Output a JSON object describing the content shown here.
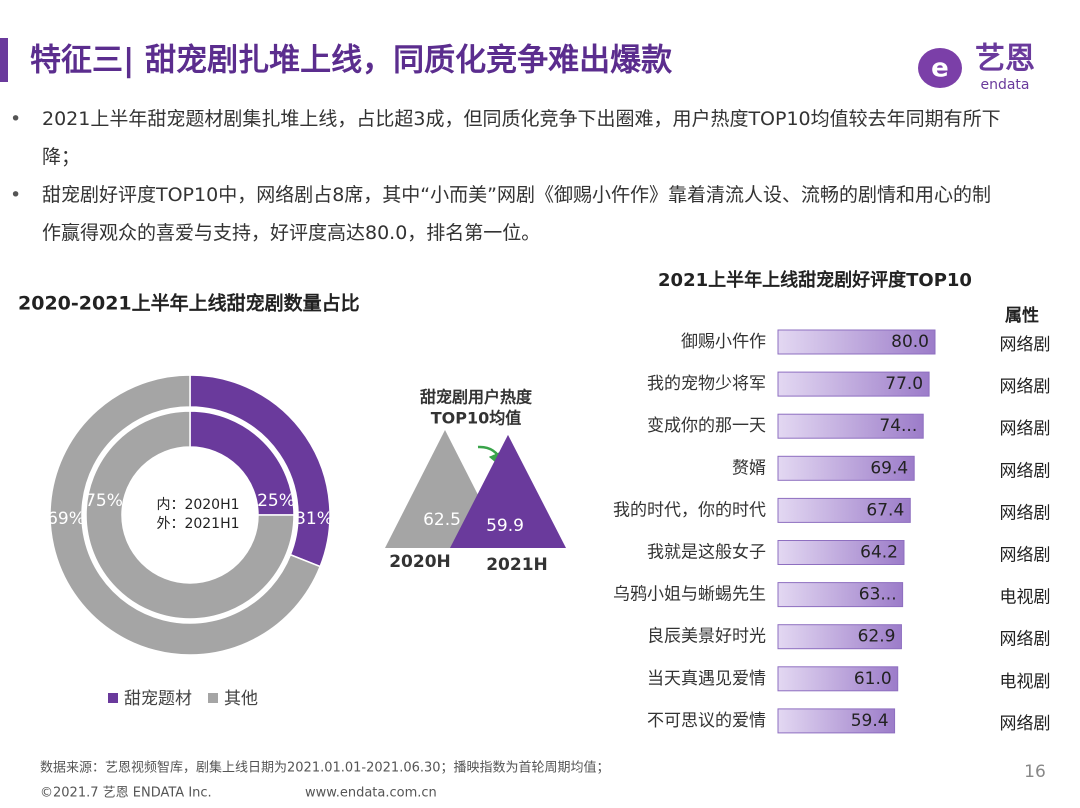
{
  "header": {
    "title": "特征三| 甜宠剧扎堆上线，同质化竞争难出爆款",
    "logo": "艺恩",
    "logo_sub": "endata"
  },
  "bullets": [
    "2021上半年甜宠题材剧集扎堆上线，占比超3成，但同质化竞争下出圈难，用户热度TOP10均值较去年同期有所下降；",
    "甜宠剧好评度TOP10中，网络剧占8席，其中“小而美”网剧《御赐小仵作》靠着清流人设、流畅的剧情和用心的制作赢得观众的喜爱与支持，好评度高达80.0，排名第一位。"
  ],
  "chart_data": [
    {
      "type": "donut",
      "title": "2020-2021上半年上线甜宠剧数量占比",
      "center_label": [
        "内：2020H1",
        "外：2021H1"
      ],
      "categories": [
        "甜宠题材",
        "其他"
      ],
      "colors": [
        "#6a3a9c",
        "#a5a5a5"
      ],
      "inner": {
        "values": [
          25,
          75
        ],
        "value_labels": [
          "25%",
          "75%"
        ]
      },
      "outer": {
        "values": [
          31,
          69
        ],
        "value_labels": [
          "31%",
          "69%"
        ]
      },
      "legend": "bottom"
    },
    {
      "type": "triangle",
      "title_lines": [
        "甜宠剧用户热度",
        "TOP10均值"
      ],
      "categories": [
        "2020H",
        "2021H"
      ],
      "values": [
        62.5,
        59.9
      ],
      "colors": [
        "#a5a5a5",
        "#6a3a9c"
      ]
    },
    {
      "type": "bar",
      "orientation": "horizontal",
      "title": "2021上半年上线甜宠剧好评度TOP10",
      "categories": [
        "御赐小仵作",
        "我的宠物少将军",
        "变成你的那一天",
        "赘婿",
        "我的时代，你的时代",
        "我就是这般女子",
        "乌鸦小姐与蜥蜴先生",
        "良辰美景好时光",
        "当天真遇见爱情",
        "不可思议的爱情"
      ],
      "values": [
        80.0,
        77.0,
        74.0,
        69.4,
        67.4,
        64.2,
        63.5,
        62.9,
        61.0,
        59.4
      ],
      "value_labels": [
        "80.0",
        "77.0",
        "74...",
        "69.4",
        "67.4",
        "64.2",
        "63...",
        "62.9",
        "61.0",
        "59.4"
      ],
      "attribute_title": "属性",
      "attributes": [
        "网络剧",
        "网络剧",
        "网络剧",
        "网络剧",
        "网络剧",
        "网络剧",
        "电视剧",
        "网络剧",
        "电视剧",
        "网络剧"
      ],
      "color": "#a58bd0"
    }
  ],
  "footer": {
    "source": "数据来源：艺恩视频智库，剧集上线日期为2021.01.01-2021.06.30；播映指数为首轮周期均值；",
    "copyright": "©2021.7 艺恩 ENDATA Inc.",
    "site": "www.endata.com.cn",
    "page": "16"
  }
}
